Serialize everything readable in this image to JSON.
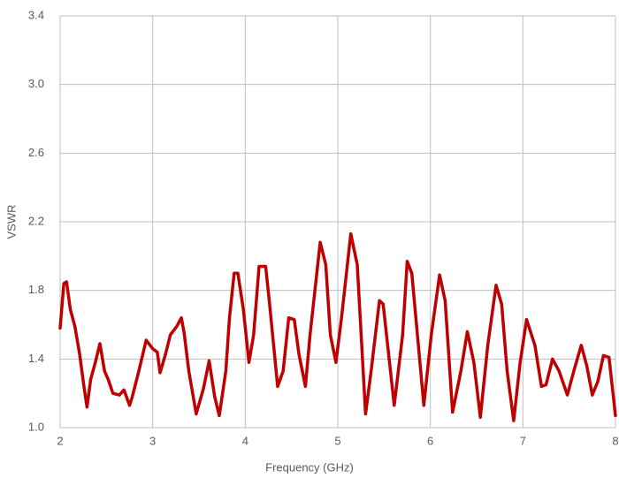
{
  "chart_data": {
    "type": "line",
    "xlabel": "Frequency (GHz)",
    "ylabel": "VSWR",
    "x": [
      2.0,
      2.04,
      2.07,
      2.11,
      2.16,
      2.21,
      2.26,
      2.29,
      2.33,
      2.38,
      2.43,
      2.48,
      2.52,
      2.57,
      2.64,
      2.69,
      2.75,
      2.78,
      2.85,
      2.93,
      3.0,
      3.05,
      3.08,
      3.14,
      3.19,
      3.26,
      3.31,
      3.34,
      3.39,
      3.47,
      3.55,
      3.61,
      3.67,
      3.72,
      3.79,
      3.83,
      3.88,
      3.92,
      3.98,
      4.04,
      4.09,
      4.15,
      4.22,
      4.26,
      4.35,
      4.41,
      4.47,
      4.53,
      4.58,
      4.65,
      4.7,
      4.81,
      4.87,
      4.92,
      4.98,
      5.04,
      5.14,
      5.21,
      5.3,
      5.36,
      5.45,
      5.49,
      5.61,
      5.7,
      5.75,
      5.8,
      5.93,
      6.01,
      6.1,
      6.16,
      6.24,
      6.33,
      6.4,
      6.47,
      6.54,
      6.62,
      6.71,
      6.77,
      6.83,
      6.9,
      6.97,
      7.04,
      7.13,
      7.2,
      7.25,
      7.32,
      7.39,
      7.48,
      7.55,
      7.63,
      7.69,
      7.75,
      7.81,
      7.87,
      7.93,
      8.0
    ],
    "series": [
      {
        "color": "#c00000",
        "values": [
          1.58,
          1.84,
          1.85,
          1.69,
          1.59,
          1.43,
          1.23,
          1.12,
          1.28,
          1.38,
          1.49,
          1.33,
          1.28,
          1.2,
          1.19,
          1.22,
          1.13,
          1.18,
          1.33,
          1.51,
          1.46,
          1.44,
          1.32,
          1.43,
          1.54,
          1.59,
          1.64,
          1.55,
          1.33,
          1.08,
          1.23,
          1.39,
          1.18,
          1.07,
          1.33,
          1.64,
          1.9,
          1.9,
          1.69,
          1.38,
          1.54,
          1.94,
          1.94,
          1.74,
          1.24,
          1.33,
          1.64,
          1.63,
          1.43,
          1.24,
          1.54,
          2.08,
          1.95,
          1.54,
          1.38,
          1.64,
          2.13,
          1.95,
          1.08,
          1.33,
          1.74,
          1.72,
          1.13,
          1.54,
          1.97,
          1.9,
          1.13,
          1.54,
          1.89,
          1.74,
          1.09,
          1.33,
          1.56,
          1.38,
          1.06,
          1.48,
          1.83,
          1.72,
          1.33,
          1.04,
          1.38,
          1.63,
          1.48,
          1.24,
          1.25,
          1.4,
          1.33,
          1.19,
          1.33,
          1.48,
          1.36,
          1.19,
          1.27,
          1.42,
          1.41,
          1.07
        ]
      }
    ],
    "xlim": [
      2,
      8
    ],
    "xticks": [
      2,
      3,
      4,
      5,
      6,
      7,
      8
    ],
    "ylim": [
      1,
      3.4
    ],
    "yticks": [
      {
        "value": 1,
        "label": "1.0"
      },
      1.4,
      1.8,
      2.2,
      2.6,
      {
        "value": 3,
        "label": "3.0"
      },
      3.4
    ],
    "grid": true
  }
}
